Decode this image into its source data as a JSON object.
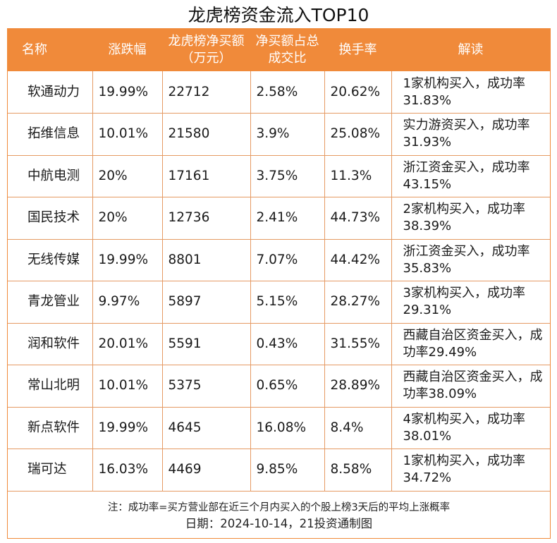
{
  "title": "龙虎榜资金流入TOP10",
  "headers": [
    "名称",
    "涨跌幅",
    "龙虎榜净买额（万元）",
    "净买额占总成交比",
    "换手率",
    "解读"
  ],
  "rows": [
    {
      "name": "软通动力",
      "change": "19.99%",
      "net_buy": "22712",
      "ratio": "2.58%",
      "turnover": "20.62%",
      "interp": "1家机构买入，成功率31.83%"
    },
    {
      "name": "拓维信息",
      "change": "10.01%",
      "net_buy": "21580",
      "ratio": "3.9%",
      "turnover": "25.08%",
      "interp": "实力游资买入，成功率31.93%"
    },
    {
      "name": "中航电测",
      "change": "20%",
      "net_buy": "17161",
      "ratio": "3.75%",
      "turnover": "11.3%",
      "interp": "浙江资金买入，成功率43.15%"
    },
    {
      "name": "国民技术",
      "change": "20%",
      "net_buy": "12736",
      "ratio": "2.41%",
      "turnover": "44.73%",
      "interp": "2家机构买入，成功率38.39%"
    },
    {
      "name": "无线传媒",
      "change": "19.99%",
      "net_buy": "8801",
      "ratio": "7.07%",
      "turnover": "44.42%",
      "interp": "浙江资金买入，成功率35.83%"
    },
    {
      "name": "青龙管业",
      "change": "9.97%",
      "net_buy": "5897",
      "ratio": "5.15%",
      "turnover": "28.27%",
      "interp": "3家机构买入，成功率29.31%"
    },
    {
      "name": "润和软件",
      "change": "20.01%",
      "net_buy": "5591",
      "ratio": "0.43%",
      "turnover": "31.55%",
      "interp": "西藏自治区资金买入，成功率29.49%"
    },
    {
      "name": "常山北明",
      "change": "10.01%",
      "net_buy": "5375",
      "ratio": "0.65%",
      "turnover": "28.89%",
      "interp": "西藏自治区资金买入，成功率38.09%"
    },
    {
      "name": "新点软件",
      "change": "19.99%",
      "net_buy": "4645",
      "ratio": "16.08%",
      "turnover": "8.4%",
      "interp": "4家机构买入，成功率38.01%"
    },
    {
      "name": "瑞可达",
      "change": "16.03%",
      "net_buy": "4469",
      "ratio": "9.85%",
      "turnover": "8.58%",
      "interp": "1家机构买入，成功率34.72%"
    }
  ],
  "note": "注：成功率=买方营业部在近三个月内买入的个股上榜3天后的平均上涨概率",
  "date": "日期：2024-10-14，21投资通制图",
  "colors": {
    "header_bg": "#f08a3a",
    "border": "#e59a63"
  }
}
